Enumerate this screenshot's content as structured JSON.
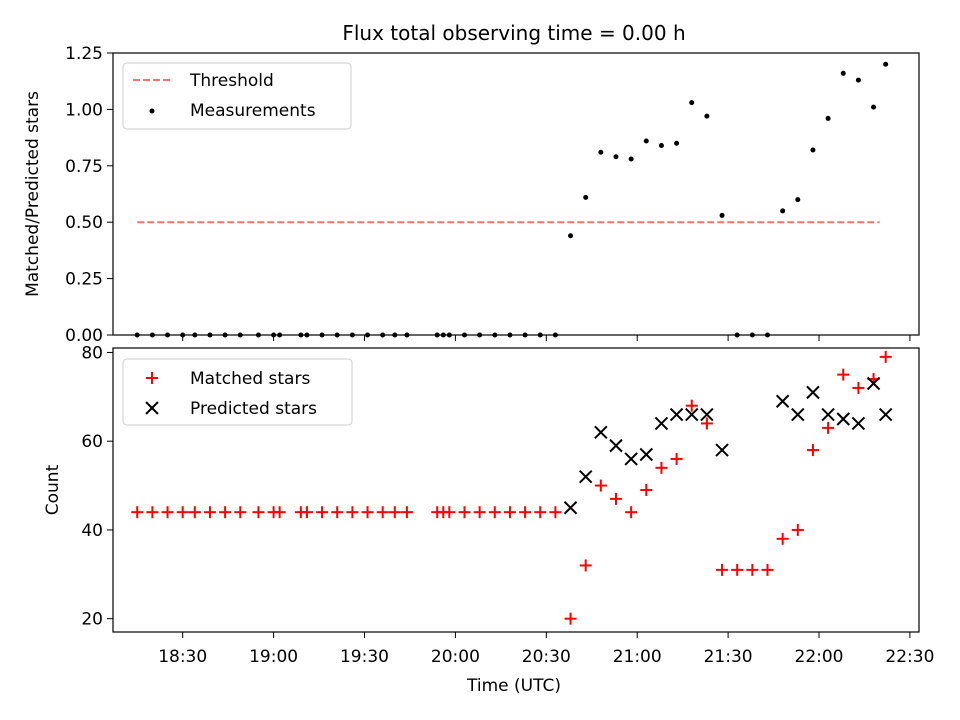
{
  "chart_data": [
    {
      "type": "scatter",
      "title": "Flux total observing time = 0.00 h",
      "xlabel": "",
      "ylabel": "Matched/Predicted stars",
      "ylim": [
        0,
        1.25
      ],
      "yticks": [
        "0.00",
        "0.25",
        "0.50",
        "0.75",
        "1.00",
        "1.25"
      ],
      "grid": false,
      "legend_position": "top-left",
      "threshold": {
        "name": "Threshold",
        "value": 0.5,
        "x_range": [
          "18:15",
          "22:20"
        ],
        "color": "#ff7070",
        "style": "dashed"
      },
      "series": [
        {
          "name": "Measurements",
          "color": "#000000",
          "marker": "dot",
          "x": [
            "18:15",
            "18:20",
            "18:25",
            "18:30",
            "18:34",
            "18:39",
            "18:44",
            "18:49",
            "18:55",
            "19:00",
            "19:02",
            "19:09",
            "19:11",
            "19:16",
            "19:21",
            "19:26",
            "19:31",
            "19:36",
            "19:40",
            "19:44",
            "19:54",
            "19:56",
            "19:58",
            "20:03",
            "20:08",
            "20:13",
            "20:18",
            "20:23",
            "20:28",
            "20:33",
            "20:38",
            "20:43",
            "20:48",
            "20:53",
            "20:58",
            "21:03",
            "21:08",
            "21:13",
            "21:18",
            "21:23",
            "21:28",
            "21:33",
            "21:38",
            "21:43",
            "21:48",
            "21:53",
            "21:58",
            "22:03",
            "22:08",
            "22:13",
            "22:18",
            "22:22"
          ],
          "y": [
            0,
            0,
            0,
            0,
            0,
            0,
            0,
            0,
            0,
            0,
            0,
            0,
            0,
            0,
            0,
            0,
            0,
            0,
            0,
            0,
            0,
            0,
            0,
            0,
            0,
            0,
            0,
            0,
            0,
            0,
            0.44,
            0.61,
            0.81,
            0.79,
            0.78,
            0.86,
            0.84,
            0.85,
            1.03,
            0.97,
            0.53,
            0,
            0,
            0,
            0.55,
            0.6,
            0.82,
            0.96,
            1.16,
            1.13,
            1.01,
            1.2
          ]
        }
      ]
    },
    {
      "type": "scatter",
      "title": "",
      "xlabel": "Time (UTC)",
      "ylabel": "Count",
      "ylim": [
        17,
        81
      ],
      "yticks": [
        "20",
        "40",
        "60",
        "80"
      ],
      "xlim": [
        "18:07",
        "22:33"
      ],
      "xticks": [
        "18:30",
        "19:00",
        "19:30",
        "20:00",
        "20:30",
        "21:00",
        "21:30",
        "22:00",
        "22:30"
      ],
      "grid": false,
      "legend_position": "top-left",
      "series": [
        {
          "name": "Matched stars",
          "color": "#ff0000",
          "marker": "plus",
          "x": [
            "18:15",
            "18:20",
            "18:25",
            "18:30",
            "18:34",
            "18:39",
            "18:44",
            "18:49",
            "18:55",
            "19:00",
            "19:02",
            "19:09",
            "19:11",
            "19:16",
            "19:21",
            "19:26",
            "19:31",
            "19:36",
            "19:40",
            "19:44",
            "19:54",
            "19:56",
            "19:58",
            "20:03",
            "20:08",
            "20:13",
            "20:18",
            "20:23",
            "20:28",
            "20:33",
            "20:38",
            "20:43",
            "20:48",
            "20:53",
            "20:58",
            "21:03",
            "21:08",
            "21:13",
            "21:18",
            "21:23",
            "21:28",
            "21:33",
            "21:38",
            "21:43",
            "21:48",
            "21:53",
            "21:58",
            "22:03",
            "22:08",
            "22:13",
            "22:18",
            "22:22"
          ],
          "y": [
            44,
            44,
            44,
            44,
            44,
            44,
            44,
            44,
            44,
            44,
            44,
            44,
            44,
            44,
            44,
            44,
            44,
            44,
            44,
            44,
            44,
            44,
            44,
            44,
            44,
            44,
            44,
            44,
            44,
            44,
            20,
            32,
            50,
            47,
            44,
            49,
            54,
            56,
            68,
            64,
            31,
            31,
            31,
            31,
            38,
            40,
            58,
            63,
            75,
            72,
            74,
            79
          ]
        },
        {
          "name": "Predicted stars",
          "color": "#000000",
          "marker": "x",
          "x": [
            "20:38",
            "20:43",
            "20:48",
            "20:53",
            "20:58",
            "21:03",
            "21:08",
            "21:13",
            "21:18",
            "21:23",
            "21:28",
            "21:48",
            "21:53",
            "21:58",
            "22:03",
            "22:08",
            "22:13",
            "22:18",
            "22:22"
          ],
          "y": [
            45,
            52,
            62,
            59,
            56,
            57,
            64,
            66,
            66,
            66,
            58,
            69,
            66,
            71,
            66,
            65,
            64,
            73,
            66
          ]
        }
      ]
    }
  ]
}
